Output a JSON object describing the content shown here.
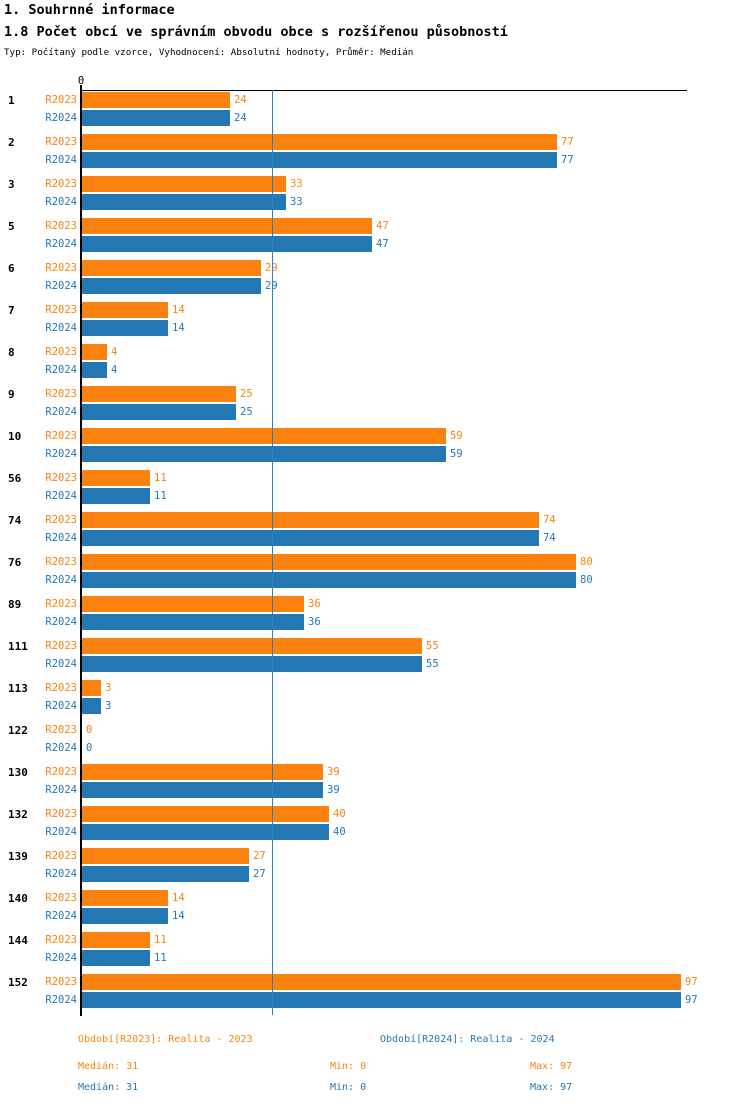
{
  "header": {
    "section_title": "1. Souhrnné informace",
    "chart_title": "1.8 Počet obcí ve správním obvodu obce s rozšířenou působností",
    "subtitle": "Typ: Počítaný podle vzorce, Vyhodnocení: Absolutní hodnoty, Průměr: Medián"
  },
  "colors": {
    "r2023_orange": "#FB820E",
    "r2024_blue": "#2478B4",
    "axis_black": "#000000",
    "median_line_blue": "#2E80BA"
  },
  "chart_data": {
    "type": "bar",
    "orientation": "horizontal",
    "title": "1.8 Počet obcí ve správním obvodu obce s rozšířenou působností",
    "categories": [
      "1",
      "2",
      "3",
      "5",
      "6",
      "7",
      "8",
      "9",
      "10",
      "56",
      "74",
      "76",
      "89",
      "111",
      "113",
      "122",
      "130",
      "132",
      "139",
      "140",
      "144",
      "152"
    ],
    "series": [
      {
        "name": "R2023",
        "color": "#FB820E",
        "values": [
          24,
          77,
          33,
          47,
          29,
          14,
          4,
          25,
          59,
          11,
          74,
          80,
          36,
          55,
          3,
          0,
          39,
          40,
          27,
          14,
          11,
          97
        ]
      },
      {
        "name": "R2024",
        "color": "#2478B4",
        "values": [
          24,
          77,
          33,
          47,
          29,
          14,
          4,
          25,
          59,
          11,
          74,
          80,
          36,
          55,
          3,
          0,
          39,
          40,
          27,
          14,
          11,
          97
        ]
      }
    ],
    "value_labels_shown": true,
    "xlim": [
      0,
      98
    ],
    "x_tick_labels": [
      "0"
    ],
    "median_line_value": 31,
    "grid": false,
    "legend_position": "bottom"
  },
  "footer": {
    "legend": [
      {
        "label": "Období[R2023]: Realita - 2023",
        "color": "#FB820E"
      },
      {
        "label": "Období[R2024]: Realita - 2024",
        "color": "#2478B4"
      }
    ],
    "stats_rows": [
      {
        "series": "R2023",
        "color": "#FB820E",
        "items": [
          {
            "label": "Medián",
            "value": "31"
          },
          {
            "label": "Min",
            "value": "0"
          },
          {
            "label": "Max",
            "value": "97"
          }
        ]
      },
      {
        "series": "R2024",
        "color": "#2478B4",
        "items": [
          {
            "label": "Medián",
            "value": "31"
          },
          {
            "label": "Min",
            "value": "0"
          },
          {
            "label": "Max",
            "value": "97"
          }
        ]
      }
    ]
  }
}
